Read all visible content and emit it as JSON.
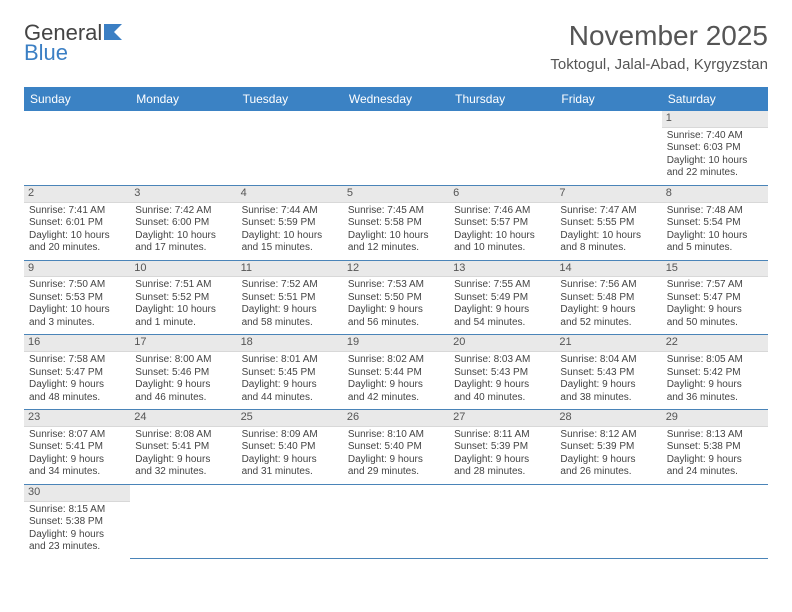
{
  "brand": {
    "part1": "General",
    "part2": "Blue"
  },
  "title": "November 2025",
  "location": "Toktogul, Jalal-Abad, Kyrgyzstan",
  "day_headers": [
    "Sunday",
    "Monday",
    "Tuesday",
    "Wednesday",
    "Thursday",
    "Friday",
    "Saturday"
  ],
  "colors": {
    "header_bg": "#3b82c4",
    "header_text": "#ffffff",
    "row_divider": "#4a84b8",
    "daynum_bg": "#e9e9e9",
    "body_text": "#444444",
    "title_text": "#555555"
  },
  "weeks": [
    [
      null,
      null,
      null,
      null,
      null,
      null,
      {
        "n": "1",
        "sunrise": "Sunrise: 7:40 AM",
        "sunset": "Sunset: 6:03 PM",
        "day1": "Daylight: 10 hours",
        "day2": "and 22 minutes."
      }
    ],
    [
      {
        "n": "2",
        "sunrise": "Sunrise: 7:41 AM",
        "sunset": "Sunset: 6:01 PM",
        "day1": "Daylight: 10 hours",
        "day2": "and 20 minutes."
      },
      {
        "n": "3",
        "sunrise": "Sunrise: 7:42 AM",
        "sunset": "Sunset: 6:00 PM",
        "day1": "Daylight: 10 hours",
        "day2": "and 17 minutes."
      },
      {
        "n": "4",
        "sunrise": "Sunrise: 7:44 AM",
        "sunset": "Sunset: 5:59 PM",
        "day1": "Daylight: 10 hours",
        "day2": "and 15 minutes."
      },
      {
        "n": "5",
        "sunrise": "Sunrise: 7:45 AM",
        "sunset": "Sunset: 5:58 PM",
        "day1": "Daylight: 10 hours",
        "day2": "and 12 minutes."
      },
      {
        "n": "6",
        "sunrise": "Sunrise: 7:46 AM",
        "sunset": "Sunset: 5:57 PM",
        "day1": "Daylight: 10 hours",
        "day2": "and 10 minutes."
      },
      {
        "n": "7",
        "sunrise": "Sunrise: 7:47 AM",
        "sunset": "Sunset: 5:55 PM",
        "day1": "Daylight: 10 hours",
        "day2": "and 8 minutes."
      },
      {
        "n": "8",
        "sunrise": "Sunrise: 7:48 AM",
        "sunset": "Sunset: 5:54 PM",
        "day1": "Daylight: 10 hours",
        "day2": "and 5 minutes."
      }
    ],
    [
      {
        "n": "9",
        "sunrise": "Sunrise: 7:50 AM",
        "sunset": "Sunset: 5:53 PM",
        "day1": "Daylight: 10 hours",
        "day2": "and 3 minutes."
      },
      {
        "n": "10",
        "sunrise": "Sunrise: 7:51 AM",
        "sunset": "Sunset: 5:52 PM",
        "day1": "Daylight: 10 hours",
        "day2": "and 1 minute."
      },
      {
        "n": "11",
        "sunrise": "Sunrise: 7:52 AM",
        "sunset": "Sunset: 5:51 PM",
        "day1": "Daylight: 9 hours",
        "day2": "and 58 minutes."
      },
      {
        "n": "12",
        "sunrise": "Sunrise: 7:53 AM",
        "sunset": "Sunset: 5:50 PM",
        "day1": "Daylight: 9 hours",
        "day2": "and 56 minutes."
      },
      {
        "n": "13",
        "sunrise": "Sunrise: 7:55 AM",
        "sunset": "Sunset: 5:49 PM",
        "day1": "Daylight: 9 hours",
        "day2": "and 54 minutes."
      },
      {
        "n": "14",
        "sunrise": "Sunrise: 7:56 AM",
        "sunset": "Sunset: 5:48 PM",
        "day1": "Daylight: 9 hours",
        "day2": "and 52 minutes."
      },
      {
        "n": "15",
        "sunrise": "Sunrise: 7:57 AM",
        "sunset": "Sunset: 5:47 PM",
        "day1": "Daylight: 9 hours",
        "day2": "and 50 minutes."
      }
    ],
    [
      {
        "n": "16",
        "sunrise": "Sunrise: 7:58 AM",
        "sunset": "Sunset: 5:47 PM",
        "day1": "Daylight: 9 hours",
        "day2": "and 48 minutes."
      },
      {
        "n": "17",
        "sunrise": "Sunrise: 8:00 AM",
        "sunset": "Sunset: 5:46 PM",
        "day1": "Daylight: 9 hours",
        "day2": "and 46 minutes."
      },
      {
        "n": "18",
        "sunrise": "Sunrise: 8:01 AM",
        "sunset": "Sunset: 5:45 PM",
        "day1": "Daylight: 9 hours",
        "day2": "and 44 minutes."
      },
      {
        "n": "19",
        "sunrise": "Sunrise: 8:02 AM",
        "sunset": "Sunset: 5:44 PM",
        "day1": "Daylight: 9 hours",
        "day2": "and 42 minutes."
      },
      {
        "n": "20",
        "sunrise": "Sunrise: 8:03 AM",
        "sunset": "Sunset: 5:43 PM",
        "day1": "Daylight: 9 hours",
        "day2": "and 40 minutes."
      },
      {
        "n": "21",
        "sunrise": "Sunrise: 8:04 AM",
        "sunset": "Sunset: 5:43 PM",
        "day1": "Daylight: 9 hours",
        "day2": "and 38 minutes."
      },
      {
        "n": "22",
        "sunrise": "Sunrise: 8:05 AM",
        "sunset": "Sunset: 5:42 PM",
        "day1": "Daylight: 9 hours",
        "day2": "and 36 minutes."
      }
    ],
    [
      {
        "n": "23",
        "sunrise": "Sunrise: 8:07 AM",
        "sunset": "Sunset: 5:41 PM",
        "day1": "Daylight: 9 hours",
        "day2": "and 34 minutes."
      },
      {
        "n": "24",
        "sunrise": "Sunrise: 8:08 AM",
        "sunset": "Sunset: 5:41 PM",
        "day1": "Daylight: 9 hours",
        "day2": "and 32 minutes."
      },
      {
        "n": "25",
        "sunrise": "Sunrise: 8:09 AM",
        "sunset": "Sunset: 5:40 PM",
        "day1": "Daylight: 9 hours",
        "day2": "and 31 minutes."
      },
      {
        "n": "26",
        "sunrise": "Sunrise: 8:10 AM",
        "sunset": "Sunset: 5:40 PM",
        "day1": "Daylight: 9 hours",
        "day2": "and 29 minutes."
      },
      {
        "n": "27",
        "sunrise": "Sunrise: 8:11 AM",
        "sunset": "Sunset: 5:39 PM",
        "day1": "Daylight: 9 hours",
        "day2": "and 28 minutes."
      },
      {
        "n": "28",
        "sunrise": "Sunrise: 8:12 AM",
        "sunset": "Sunset: 5:39 PM",
        "day1": "Daylight: 9 hours",
        "day2": "and 26 minutes."
      },
      {
        "n": "29",
        "sunrise": "Sunrise: 8:13 AM",
        "sunset": "Sunset: 5:38 PM",
        "day1": "Daylight: 9 hours",
        "day2": "and 24 minutes."
      }
    ],
    [
      {
        "n": "30",
        "sunrise": "Sunrise: 8:15 AM",
        "sunset": "Sunset: 5:38 PM",
        "day1": "Daylight: 9 hours",
        "day2": "and 23 minutes."
      },
      null,
      null,
      null,
      null,
      null,
      null
    ]
  ]
}
